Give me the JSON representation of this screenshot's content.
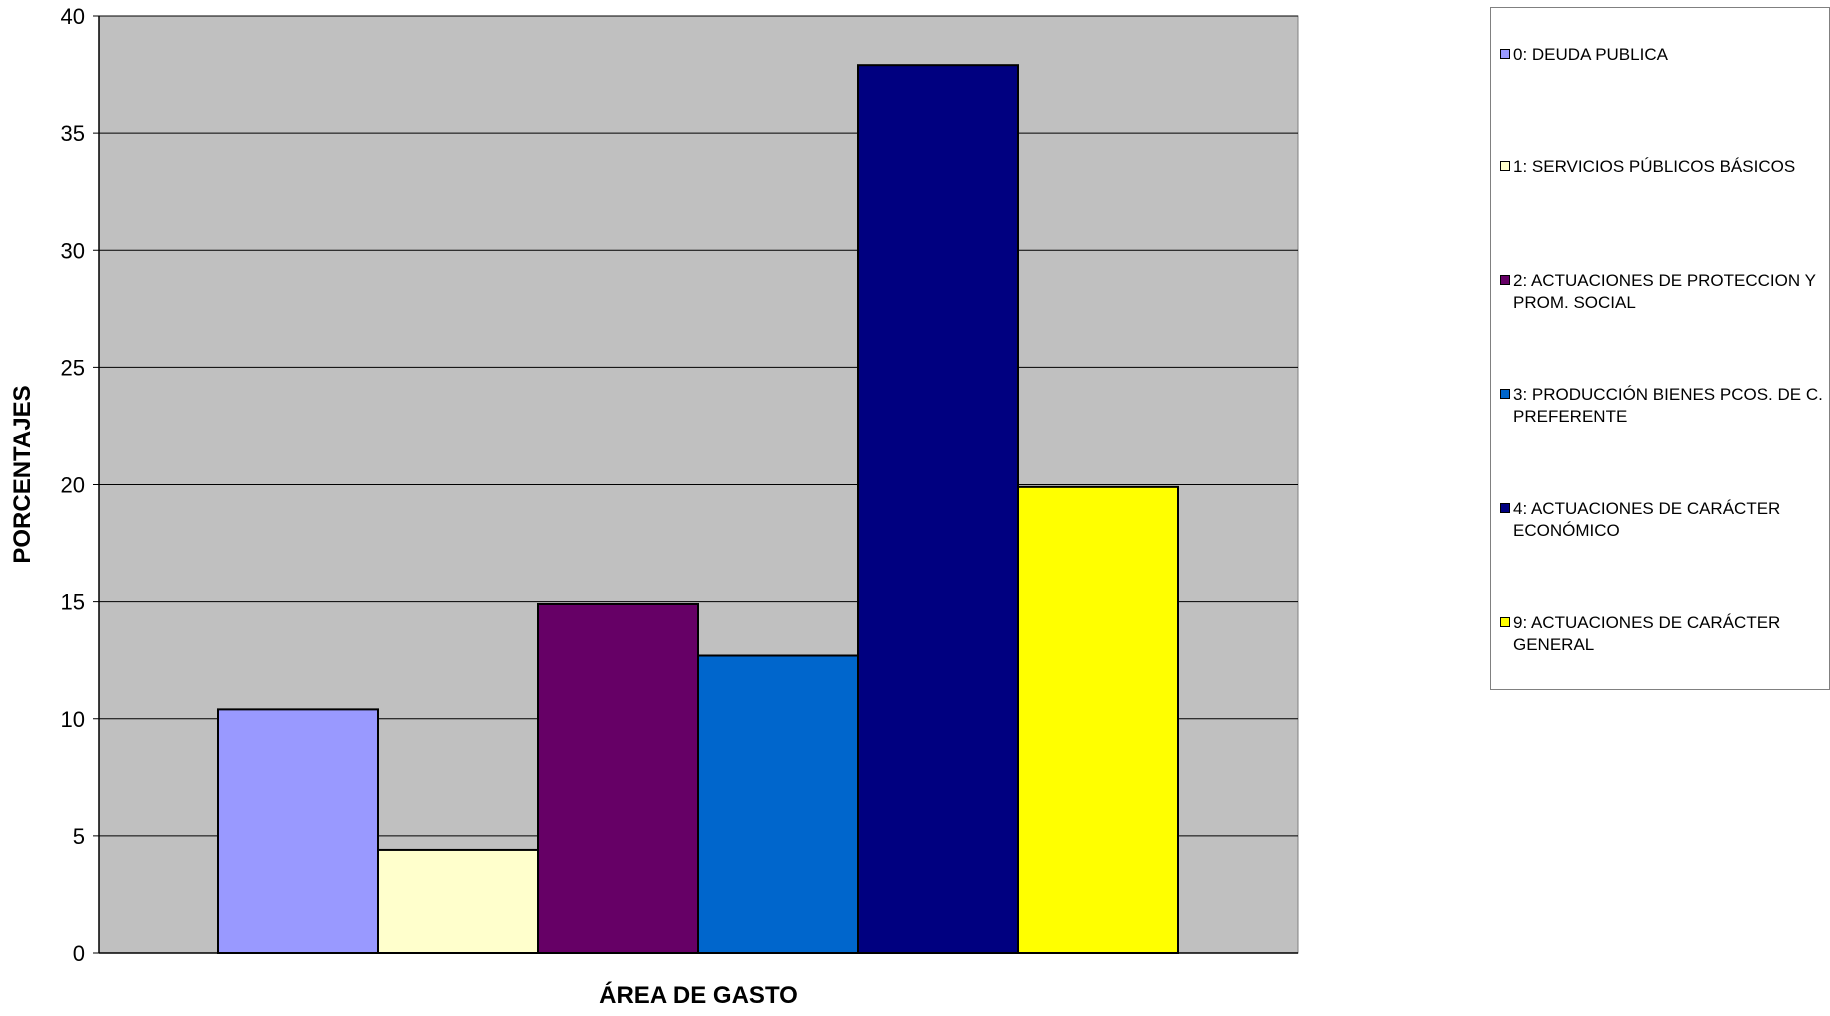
{
  "chart_data": {
    "type": "bar",
    "xlabel": "ÁREA DE GASTO",
    "ylabel": "PORCENTAJES",
    "ylim": [
      0,
      40
    ],
    "yticks": [
      0,
      5,
      10,
      15,
      20,
      25,
      30,
      35,
      40
    ],
    "grid": true,
    "legend_position": "right",
    "plot_background": "#c0c0c0",
    "series": [
      {
        "name": "0: DEUDA PUBLICA",
        "value": 10.4,
        "color": "#9999ff"
      },
      {
        "name": "1: SERVICIOS PÚBLICOS BÁSICOS",
        "value": 4.4,
        "color": "#ffffcc"
      },
      {
        "name": "2: ACTUACIONES DE PROTECCION Y PROM. SOCIAL",
        "value": 14.9,
        "color": "#660066"
      },
      {
        "name": "3: PRODUCCIÓN BIENES PCOS. DE C. PREFERENTE",
        "value": 12.7,
        "color": "#0066cc"
      },
      {
        "name": "4: ACTUACIONES DE CARÁCTER ECONÓMICO",
        "value": 37.9,
        "color": "#000080"
      },
      {
        "name": "9: ACTUACIONES DE CARÁCTER GENERAL",
        "value": 19.9,
        "color": "#ffff00"
      }
    ]
  }
}
